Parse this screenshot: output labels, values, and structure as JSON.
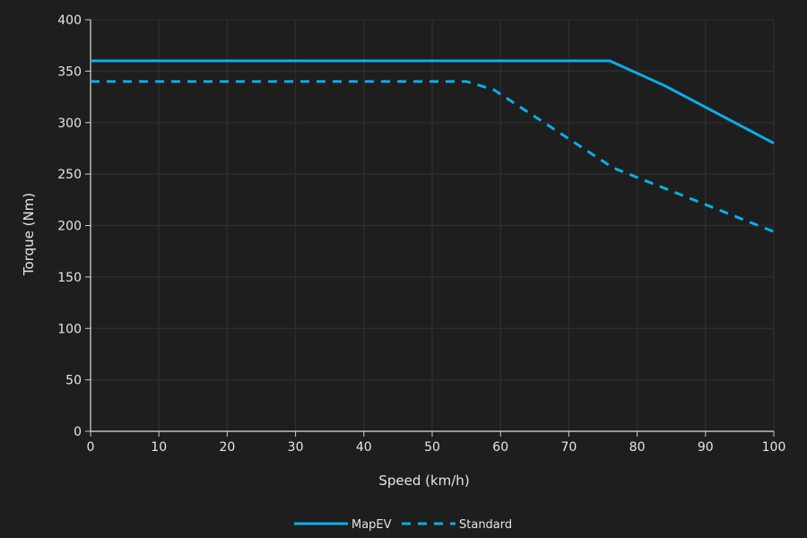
{
  "chart_data": {
    "type": "line",
    "title": "",
    "xlabel": "Speed (km/h)",
    "ylabel": "Torque (Nm)",
    "xlim": [
      0,
      100
    ],
    "ylim": [
      0,
      400
    ],
    "xticks": [
      0,
      10,
      20,
      30,
      40,
      50,
      60,
      70,
      80,
      90,
      100
    ],
    "yticks": [
      0,
      50,
      100,
      150,
      200,
      250,
      300,
      350,
      400
    ],
    "grid": true,
    "legend_position": "bottom",
    "colors": {
      "background": "#1e1e1e",
      "grid": "#2c2c2c",
      "line": "#0aaee8"
    },
    "series": [
      {
        "name": "MapEV",
        "style": "solid",
        "x": [
          0,
          76,
          84,
          100
        ],
        "y": [
          360,
          360,
          336,
          280
        ]
      },
      {
        "name": "Standard",
        "style": "dashed",
        "x": [
          0,
          55,
          59,
          76.5,
          100
        ],
        "y": [
          340,
          340,
          332,
          256,
          194
        ]
      }
    ]
  }
}
